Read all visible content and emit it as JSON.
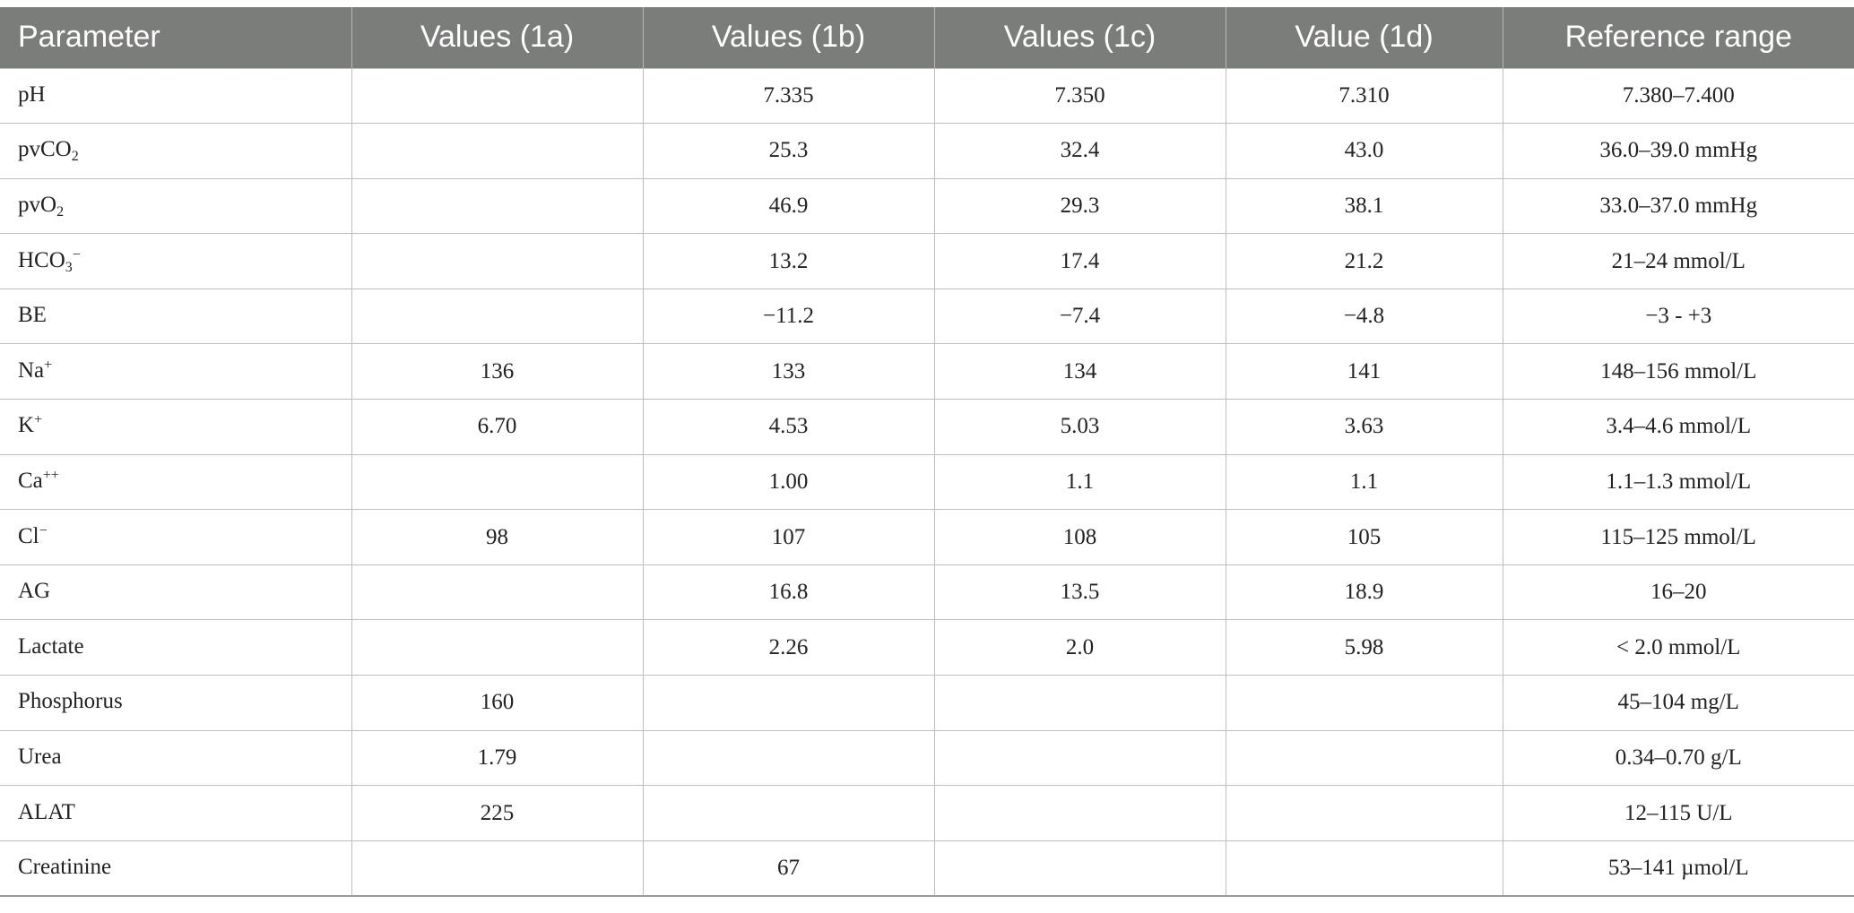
{
  "table": {
    "headers": [
      "Parameter",
      "Values (1a)",
      "Values (1b)",
      "Values (1c)",
      "Value (1d)",
      "Reference range"
    ],
    "rows": [
      {
        "param": {
          "base": "pH",
          "sub": "",
          "sup": "",
          "tail": ""
        },
        "v1a": "",
        "v1b": "7.335",
        "v1c": "7.350",
        "v1d": "7.310",
        "ref": "7.380–7.400"
      },
      {
        "param": {
          "base": "pvCO",
          "sub": "2",
          "sup": "",
          "tail": ""
        },
        "v1a": "",
        "v1b": "25.3",
        "v1c": "32.4",
        "v1d": "43.0",
        "ref": "36.0–39.0 mmHg"
      },
      {
        "param": {
          "base": "pvO",
          "sub": "2",
          "sup": "",
          "tail": ""
        },
        "v1a": "",
        "v1b": "46.9",
        "v1c": "29.3",
        "v1d": "38.1",
        "ref": "33.0–37.0 mmHg"
      },
      {
        "param": {
          "base": "HCO",
          "sub": "3",
          "sup": "",
          "tail": "−"
        },
        "v1a": "",
        "v1b": "13.2",
        "v1c": "17.4",
        "v1d": "21.2",
        "ref": "21–24 mmol/L"
      },
      {
        "param": {
          "base": "BE",
          "sub": "",
          "sup": "",
          "tail": ""
        },
        "v1a": "",
        "v1b": "−11.2",
        "v1c": "−7.4",
        "v1d": "−4.8",
        "ref": "−3 - +3"
      },
      {
        "param": {
          "base": "Na",
          "sub": "",
          "sup": "+",
          "tail": ""
        },
        "v1a": "136",
        "v1b": "133",
        "v1c": "134",
        "v1d": "141",
        "ref": "148–156 mmol/L"
      },
      {
        "param": {
          "base": "K",
          "sub": "",
          "sup": "+",
          "tail": ""
        },
        "v1a": "6.70",
        "v1b": "4.53",
        "v1c": "5.03",
        "v1d": "3.63",
        "ref": "3.4–4.6 mmol/L"
      },
      {
        "param": {
          "base": "Ca",
          "sub": "",
          "sup": "++",
          "tail": ""
        },
        "v1a": "",
        "v1b": "1.00",
        "v1c": "1.1",
        "v1d": "1.1",
        "ref": "1.1–1.3 mmol/L"
      },
      {
        "param": {
          "base": "Cl",
          "sub": "",
          "sup": "",
          "tail": "−"
        },
        "v1a": "98",
        "v1b": "107",
        "v1c": "108",
        "v1d": "105",
        "ref": "115–125 mmol/L"
      },
      {
        "param": {
          "base": "AG",
          "sub": "",
          "sup": "",
          "tail": ""
        },
        "v1a": "",
        "v1b": "16.8",
        "v1c": "13.5",
        "v1d": "18.9",
        "ref": "16–20"
      },
      {
        "param": {
          "base": "Lactate",
          "sub": "",
          "sup": "",
          "tail": ""
        },
        "v1a": "",
        "v1b": "2.26",
        "v1c": "2.0",
        "v1d": "5.98",
        "ref": "< 2.0 mmol/L"
      },
      {
        "param": {
          "base": "Phosphorus",
          "sub": "",
          "sup": "",
          "tail": ""
        },
        "v1a": "160",
        "v1b": "",
        "v1c": "",
        "v1d": "",
        "ref": "45–104 mg/L"
      },
      {
        "param": {
          "base": "Urea",
          "sub": "",
          "sup": "",
          "tail": ""
        },
        "v1a": "1.79",
        "v1b": "",
        "v1c": "",
        "v1d": "",
        "ref": "0.34–0.70 g/L"
      },
      {
        "param": {
          "base": "ALAT",
          "sub": "",
          "sup": "",
          "tail": ""
        },
        "v1a": "225",
        "v1b": "",
        "v1c": "",
        "v1d": "",
        "ref": "12–115 U/L"
      },
      {
        "param": {
          "base": "Creatinine",
          "sub": "",
          "sup": "",
          "tail": ""
        },
        "v1a": "",
        "v1b": "67",
        "v1c": "",
        "v1d": "",
        "ref": "53–141 µmol/L"
      }
    ]
  }
}
